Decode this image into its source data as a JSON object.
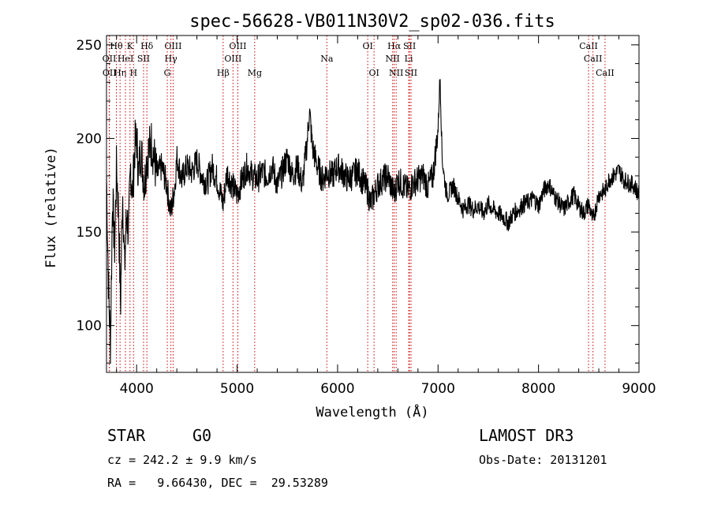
{
  "chart_data": {
    "type": "line",
    "title": "spec-56628-VB011N30V2_sp02-036.fits",
    "xlabel": "Wavelength (Å)",
    "ylabel": "Flux (relative)",
    "xlim": [
      3700,
      9000
    ],
    "ylim": [
      75,
      255
    ],
    "x_ticks": [
      4000,
      5000,
      6000,
      7000,
      8000,
      9000
    ],
    "y_ticks": [
      100,
      150,
      200,
      250
    ],
    "series": [
      {
        "name": "spectrum",
        "x": [
          3700,
          3720,
          3740,
          3760,
          3780,
          3800,
          3820,
          3840,
          3860,
          3880,
          3900,
          3920,
          3940,
          3960,
          3980,
          4000,
          4020,
          4040,
          4060,
          4080,
          4100,
          4150,
          4200,
          4250,
          4300,
          4340,
          4380,
          4400,
          4450,
          4500,
          4550,
          4600,
          4650,
          4700,
          4750,
          4800,
          4861,
          4900,
          4950,
          5000,
          5050,
          5100,
          5150,
          5200,
          5250,
          5300,
          5350,
          5400,
          5450,
          5500,
          5550,
          5600,
          5650,
          5700,
          5720,
          5750,
          5800,
          5850,
          5890,
          5950,
          6000,
          6050,
          6100,
          6150,
          6200,
          6250,
          6300,
          6330,
          6363,
          6400,
          6450,
          6500,
          6530,
          6563,
          6600,
          6650,
          6700,
          6750,
          6800,
          6850,
          6900,
          6950,
          7000,
          7020,
          7040,
          7060,
          7080,
          7100,
          7150,
          7200,
          7250,
          7300,
          7350,
          7400,
          7450,
          7500,
          7550,
          7600,
          7650,
          7700,
          7750,
          7800,
          7850,
          7900,
          7950,
          8000,
          8050,
          8100,
          8150,
          8200,
          8250,
          8300,
          8350,
          8400,
          8450,
          8500,
          8540,
          8600,
          8662,
          8700,
          8750,
          8800,
          8850,
          8900,
          8950,
          9000
        ],
        "y": [
          180,
          120,
          90,
          170,
          140,
          185,
          160,
          110,
          175,
          130,
          160,
          150,
          185,
          170,
          195,
          200,
          180,
          195,
          185,
          175,
          190,
          198,
          180,
          185,
          175,
          160,
          175,
          190,
          178,
          185,
          182,
          188,
          180,
          176,
          185,
          178,
          165,
          182,
          175,
          170,
          178,
          185,
          180,
          178,
          182,
          180,
          185,
          175,
          182,
          190,
          180,
          185,
          175,
          200,
          215,
          195,
          185,
          178,
          182,
          180,
          185,
          182,
          178,
          180,
          183,
          177,
          172,
          165,
          170,
          175,
          178,
          180,
          175,
          170,
          178,
          175,
          172,
          176,
          178,
          180,
          174,
          180,
          205,
          235,
          190,
          180,
          172,
          170,
          175,
          168,
          162,
          165,
          162,
          164,
          160,
          165,
          162,
          160,
          158,
          155,
          160,
          162,
          165,
          166,
          168,
          164,
          172,
          176,
          170,
          166,
          162,
          166,
          170,
          164,
          160,
          165,
          156,
          170,
          172,
          178,
          180,
          183,
          178,
          176,
          175,
          170
        ]
      }
    ],
    "lines": [
      {
        "name": "Hθ",
        "x": 3798,
        "row": 1
      },
      {
        "name": "OII",
        "x": 3727,
        "row": 2
      },
      {
        "name": "OII",
        "x": 3729,
        "row": 3
      },
      {
        "name": "Hη",
        "x": 3835,
        "row": 3
      },
      {
        "name": "HeI",
        "x": 3889,
        "row": 2
      },
      {
        "name": "K",
        "x": 3934,
        "row": 1
      },
      {
        "name": "H",
        "x": 3969,
        "row": 3
      },
      {
        "name": "SII",
        "x": 4069,
        "row": 2
      },
      {
        "name": "Hδ",
        "x": 4102,
        "row": 1
      },
      {
        "name": "OIII",
        "x": 4363,
        "row": 1
      },
      {
        "name": "Hγ",
        "x": 4341,
        "row": 2
      },
      {
        "name": "G",
        "x": 4305,
        "row": 3
      },
      {
        "name": "Hβ",
        "x": 4861,
        "row": 3
      },
      {
        "name": "OIII",
        "x": 5007,
        "row": 1
      },
      {
        "name": "OIII",
        "x": 4959,
        "row": 2
      },
      {
        "name": "Mg",
        "x": 5175,
        "row": 3
      },
      {
        "name": "Na",
        "x": 5893,
        "row": 2
      },
      {
        "name": "OI",
        "x": 6300,
        "row": 1
      },
      {
        "name": "OI",
        "x": 6363,
        "row": 3
      },
      {
        "name": "Hα",
        "x": 6563,
        "row": 1
      },
      {
        "name": "NII",
        "x": 6548,
        "row": 2
      },
      {
        "name": "NII",
        "x": 6583,
        "row": 3
      },
      {
        "name": "SII",
        "x": 6716,
        "row": 1
      },
      {
        "name": "Li",
        "x": 6708,
        "row": 2
      },
      {
        "name": "SII",
        "x": 6731,
        "row": 3
      },
      {
        "name": "CaII",
        "x": 8498,
        "row": 1
      },
      {
        "name": "CaII",
        "x": 8542,
        "row": 2
      },
      {
        "name": "CaII",
        "x": 8662,
        "row": 3
      }
    ]
  },
  "info": {
    "object_type": "STAR",
    "subclass": "G0",
    "survey": "LAMOST DR3",
    "cz": "cz = 242.2 ± 9.9 km/s",
    "obs_date": "Obs-Date: 20131201",
    "coords": "RA =   9.66430, DEC =  29.53289"
  },
  "colors": {
    "spectrum": "#000000",
    "lines": "#cc0000",
    "axes": "#000000"
  }
}
